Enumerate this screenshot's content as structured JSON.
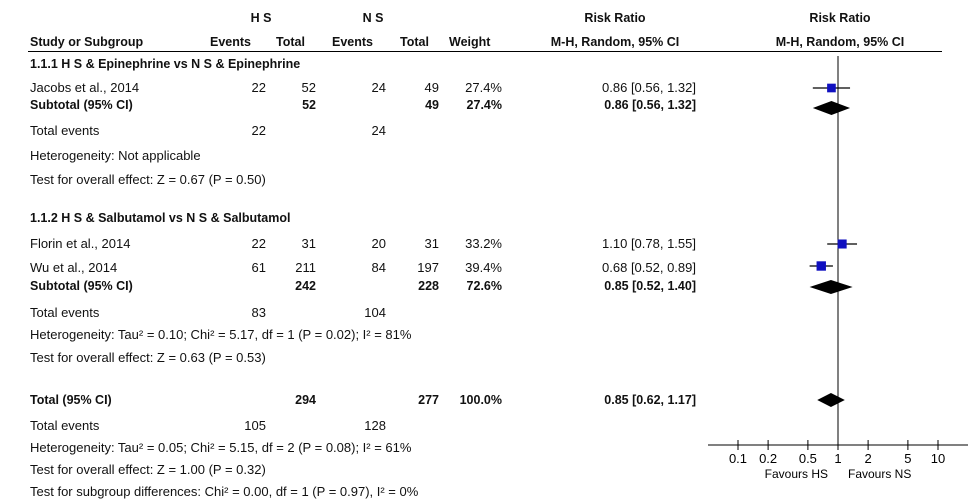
{
  "header": {
    "group_hs": "H S",
    "group_ns": "N S",
    "rr_title": "Risk Ratio",
    "rr_title_plot": "Risk Ratio",
    "col_study": "Study or Subgroup",
    "col_events_hs": "Events",
    "col_total_hs": "Total",
    "col_events_ns": "Events",
    "col_total_ns": "Total",
    "col_weight": "Weight",
    "col_method": "M-H, Random, 95% CI",
    "col_method_plot": "M-H, Random, 95% CI"
  },
  "subgroups": [
    {
      "title": "1.1.1 H S & Epinephrine vs N S & Epinephrine",
      "studies": [
        {
          "name": "Jacobs et al., 2014",
          "ev1": "22",
          "tot1": "52",
          "ev2": "24",
          "tot2": "49",
          "weight": "27.4%",
          "ci": "0.86 [0.56, 1.32]"
        }
      ],
      "subtotal": {
        "label": "Subtotal (95% CI)",
        "tot1": "52",
        "tot2": "49",
        "weight": "27.4%",
        "ci": "0.86 [0.56, 1.32]"
      },
      "total_events": {
        "label": "Total events",
        "ev1": "22",
        "ev2": "24"
      },
      "heterogeneity": "Heterogeneity: Not applicable",
      "overall": "Test for overall effect: Z = 0.67 (P = 0.50)"
    },
    {
      "title": "1.1.2 H S & Salbutamol vs N S & Salbutamol",
      "studies": [
        {
          "name": "Florin et al., 2014",
          "ev1": "22",
          "tot1": "31",
          "ev2": "20",
          "tot2": "31",
          "weight": "33.2%",
          "ci": "1.10 [0.78, 1.55]"
        },
        {
          "name": "Wu et al., 2014",
          "ev1": "61",
          "tot1": "211",
          "ev2": "84",
          "tot2": "197",
          "weight": "39.4%",
          "ci": "0.68 [0.52, 0.89]"
        }
      ],
      "subtotal": {
        "label": "Subtotal (95% CI)",
        "tot1": "242",
        "tot2": "228",
        "weight": "72.6%",
        "ci": "0.85 [0.52, 1.40]"
      },
      "total_events": {
        "label": "Total events",
        "ev1": "83",
        "ev2": "104"
      },
      "heterogeneity": "Heterogeneity: Tau² = 0.10; Chi² = 5.17, df = 1 (P = 0.02); I² = 81%",
      "overall": "Test for overall effect: Z = 0.63 (P = 0.53)"
    }
  ],
  "total": {
    "label": "Total (95% CI)",
    "tot1": "294",
    "tot2": "277",
    "weight": "100.0%",
    "ci": "0.85 [0.62, 1.17]",
    "total_events": {
      "label": "Total events",
      "ev1": "105",
      "ev2": "128"
    },
    "heterogeneity": "Heterogeneity: Tau² = 0.05; Chi² = 5.15, df = 2 (P = 0.08); I² = 61%",
    "overall": "Test for overall effect: Z = 1.00 (P = 0.32)",
    "subgroup_diff": "Test for subgroup differences: Chi² = 0.00, df = 1 (P = 0.97), I² = 0%"
  },
  "colors": {
    "marker": "#1010c0",
    "ink": "#000000"
  },
  "chart_data": {
    "type": "forest",
    "scale": "log",
    "xlim": [
      0.1,
      10
    ],
    "ticks": [
      0.1,
      0.2,
      0.5,
      1,
      2,
      5,
      10
    ],
    "tick_labels": [
      "0.1",
      "0.2",
      "0.5",
      "1",
      "2",
      "5",
      "10"
    ],
    "favours_left": "Favours HS",
    "favours_right": "Favours NS",
    "studies": [
      {
        "name": "Jacobs et al., 2014",
        "rr": 0.86,
        "lo": 0.56,
        "hi": 1.32,
        "weight": 27.4
      },
      {
        "name": "Florin et al., 2014",
        "rr": 1.1,
        "lo": 0.78,
        "hi": 1.55,
        "weight": 33.2
      },
      {
        "name": "Wu et al., 2014",
        "rr": 0.68,
        "lo": 0.52,
        "hi": 0.89,
        "weight": 39.4
      }
    ],
    "diamonds": [
      {
        "name": "Subtotal 1.1.1",
        "rr": 0.86,
        "lo": 0.56,
        "hi": 1.32
      },
      {
        "name": "Subtotal 1.1.2",
        "rr": 0.85,
        "lo": 0.52,
        "hi": 1.4
      },
      {
        "name": "Total",
        "rr": 0.85,
        "lo": 0.62,
        "hi": 1.17
      }
    ]
  }
}
